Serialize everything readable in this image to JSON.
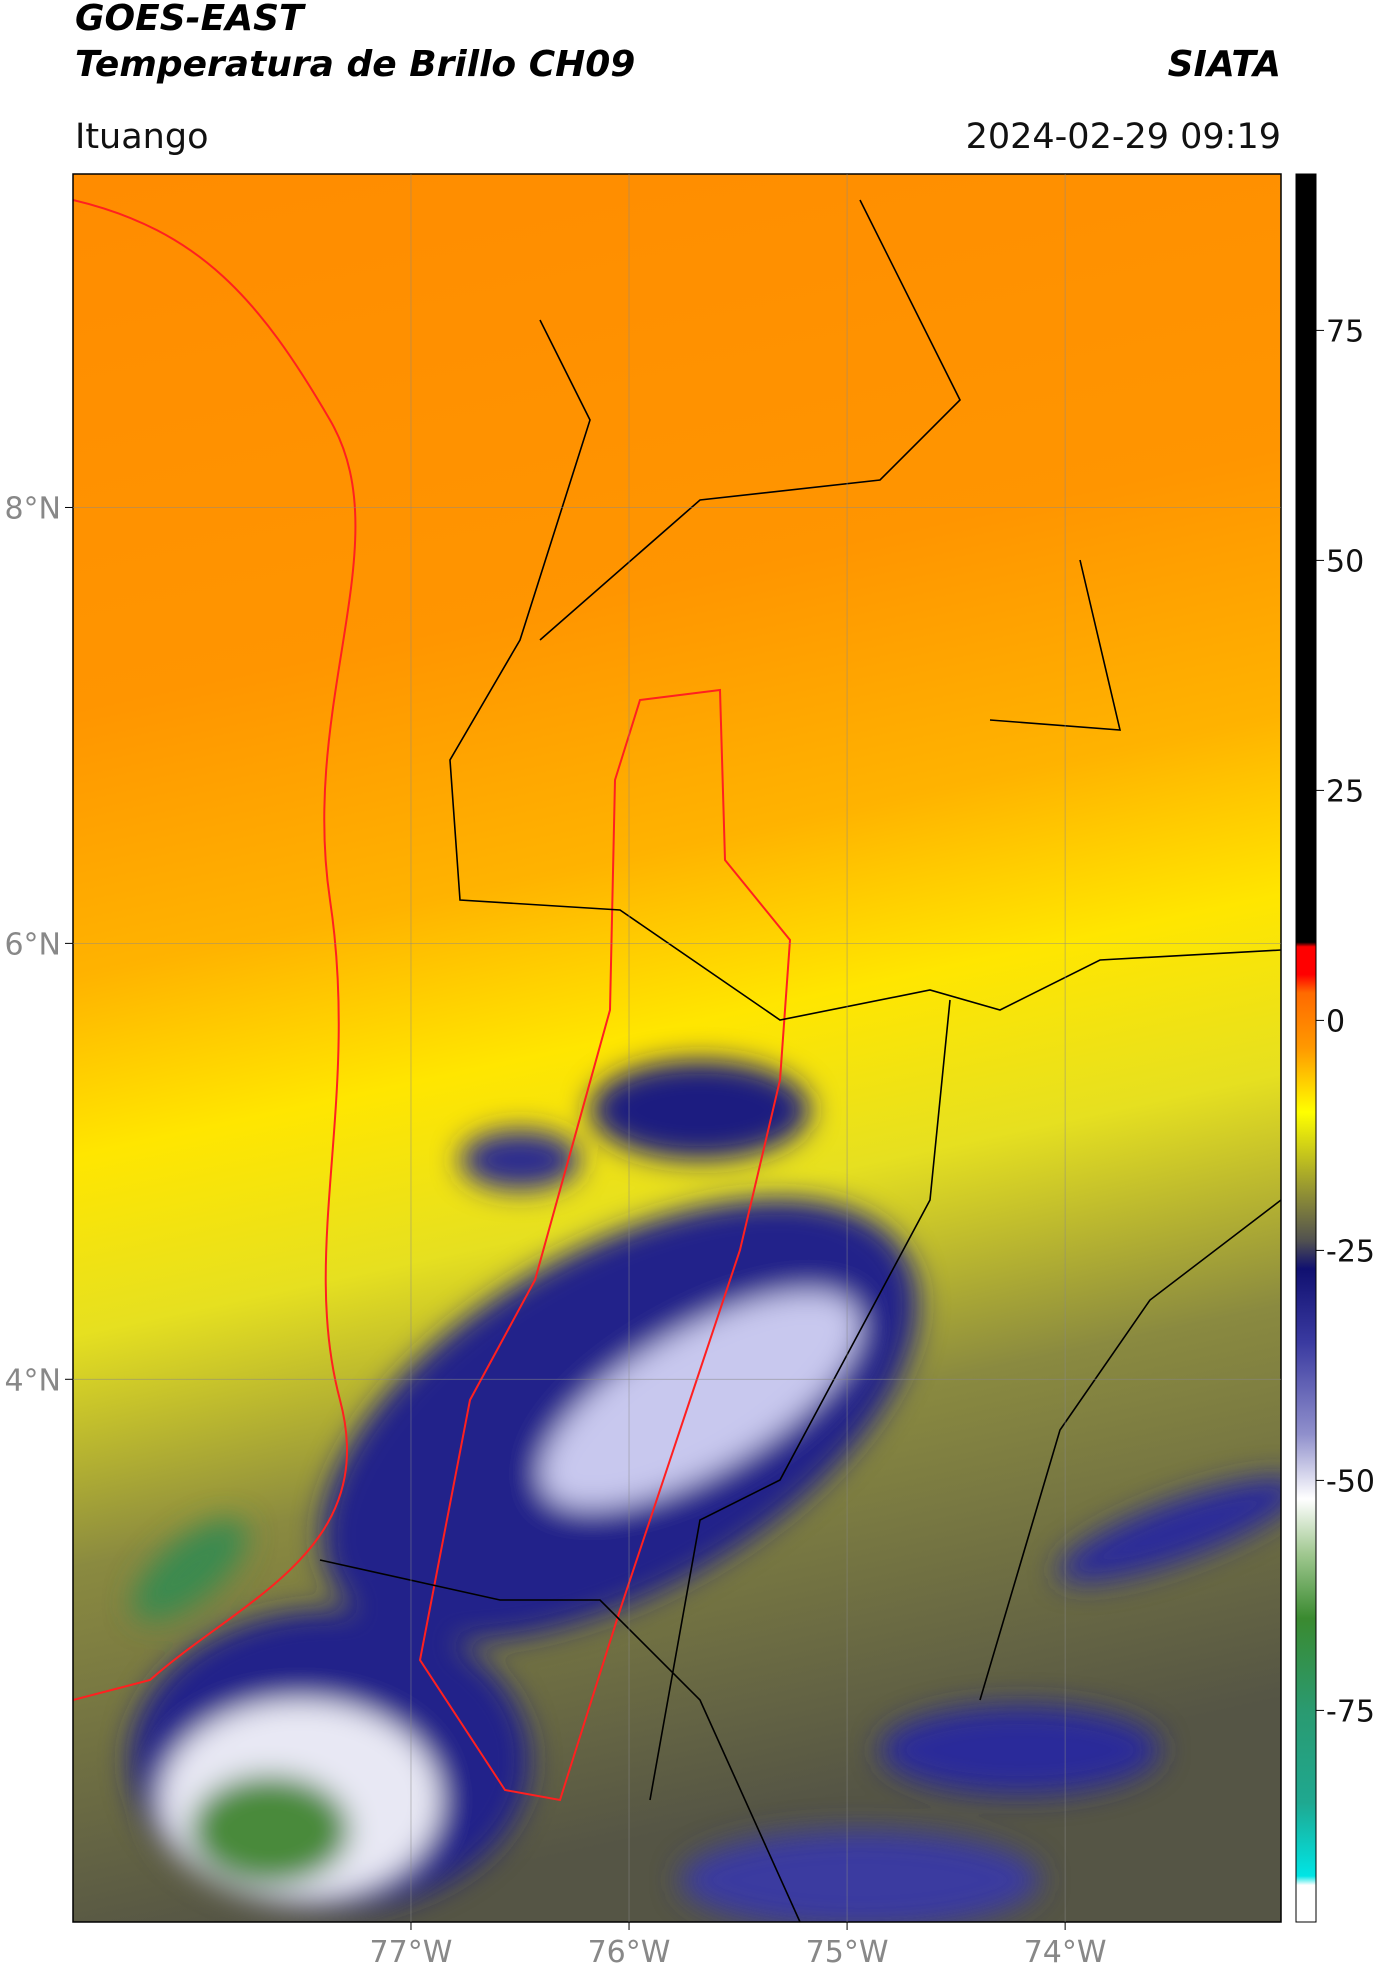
{
  "chart_data": {
    "type": "map",
    "title": "GOES-EAST",
    "subtitle": "Temperatura de Brillo CH09",
    "source": "SIATA",
    "region": "Ituango",
    "datetime": "2024-02-29 09:19",
    "xlim": [
      -78.55,
      -73.01
    ],
    "ylim": [
      1.51,
      9.53
    ],
    "xticks": [
      {
        "value": -77,
        "label": "77°W"
      },
      {
        "value": -76,
        "label": "76°W"
      },
      {
        "value": -75,
        "label": "75°W"
      },
      {
        "value": -74,
        "label": "74°W"
      }
    ],
    "yticks": [
      {
        "value": 4,
        "label": "4°N"
      },
      {
        "value": 6,
        "label": "6°N"
      },
      {
        "value": 8,
        "label": "8°N"
      }
    ],
    "grid": true,
    "colorbar": {
      "clim": [
        -98,
        92
      ],
      "ticks": [
        -75,
        -50,
        -25,
        0,
        25,
        50,
        75
      ],
      "colormap": [
        {
          "value": -98,
          "color": "#ffffff"
        },
        {
          "value": -94,
          "color": "#ffffff"
        },
        {
          "value": -93,
          "color": "#00e5e5"
        },
        {
          "value": -85,
          "color": "#1fa890"
        },
        {
          "value": -75,
          "color": "#2a9a70"
        },
        {
          "value": -65,
          "color": "#3a8a30"
        },
        {
          "value": -58,
          "color": "#a0c890"
        },
        {
          "value": -52,
          "color": "#ffffff"
        },
        {
          "value": -45,
          "color": "#9090cc"
        },
        {
          "value": -35,
          "color": "#3a3aa0"
        },
        {
          "value": -27,
          "color": "#101070"
        },
        {
          "value": -24,
          "color": "#505050"
        },
        {
          "value": -18,
          "color": "#9a9a30"
        },
        {
          "value": -10,
          "color": "#ffff00"
        },
        {
          "value": -3,
          "color": "#ff9900"
        },
        {
          "value": 3,
          "color": "#ff6a00"
        },
        {
          "value": 5,
          "color": "#ff0000"
        },
        {
          "value": 8,
          "color": "#ff0000"
        },
        {
          "value": 8.5,
          "color": "#000000"
        },
        {
          "value": 92,
          "color": "#000000"
        }
      ]
    }
  }
}
